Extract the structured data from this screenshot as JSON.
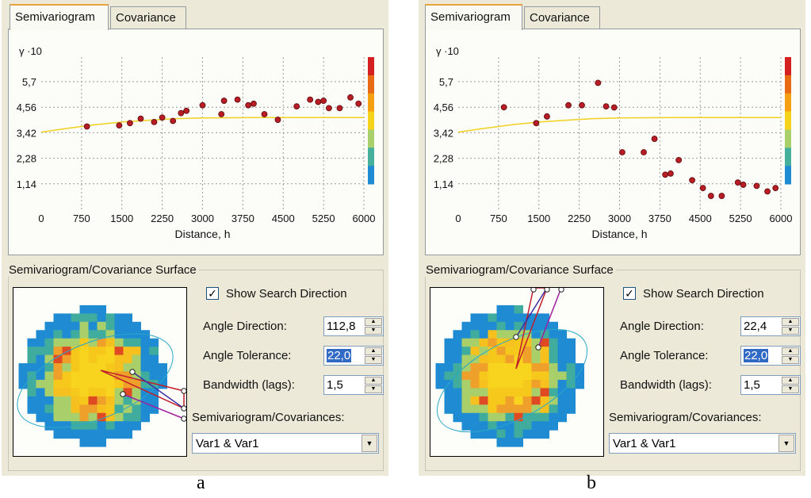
{
  "panels": [
    {
      "id": "a",
      "caption": "a",
      "tabs": [
        {
          "label": "Semivariogram",
          "active": true
        },
        {
          "label": "Covariance",
          "active": false
        }
      ],
      "chart_data": {
        "type": "scatter",
        "xlabel": "Distance, h",
        "ylabel": "γ ·10",
        "xlim": [
          0,
          6000
        ],
        "ylim": [
          0,
          6.8
        ],
        "x_ticks": [
          "0",
          "750",
          "1500",
          "2250",
          "3000",
          "3750",
          "4500",
          "5250",
          "6000"
        ],
        "y_ticks": [
          "1,14",
          "2,28",
          "3,42",
          "4,56",
          "5,7"
        ],
        "grid": true,
        "points": [
          [
            850,
            3.7
          ],
          [
            1450,
            3.75
          ],
          [
            1650,
            3.85
          ],
          [
            1850,
            4.05
          ],
          [
            2100,
            3.9
          ],
          [
            2250,
            4.1
          ],
          [
            2450,
            3.95
          ],
          [
            2600,
            4.3
          ],
          [
            2700,
            4.4
          ],
          [
            3000,
            4.65
          ],
          [
            3350,
            4.25
          ],
          [
            3400,
            4.85
          ],
          [
            3650,
            4.9
          ],
          [
            3850,
            4.65
          ],
          [
            3950,
            4.72
          ],
          [
            4150,
            4.25
          ],
          [
            4400,
            4.0
          ],
          [
            4750,
            4.6
          ],
          [
            5000,
            4.9
          ],
          [
            5150,
            4.8
          ],
          [
            5250,
            4.85
          ],
          [
            5350,
            4.52
          ],
          [
            5550,
            4.52
          ],
          [
            5750,
            5.0
          ],
          [
            5900,
            4.72
          ]
        ],
        "model_curve": [
          [
            0,
            3.45
          ],
          [
            500,
            3.62
          ],
          [
            1000,
            3.78
          ],
          [
            1500,
            3.9
          ],
          [
            2000,
            3.98
          ],
          [
            2500,
            4.05
          ],
          [
            3000,
            4.08
          ],
          [
            4000,
            4.1
          ],
          [
            6000,
            4.1
          ]
        ],
        "colorbar": [
          "#1e8bd2",
          "#46b09c",
          "#a9d06a",
          "#f5d21c",
          "#f5a012",
          "#e86a14",
          "#d42020"
        ]
      },
      "surface_group_title": "Semivariogram/Covariance Surface",
      "show_search_direction": {
        "label": "Show Search Direction",
        "checked": true
      },
      "fields": [
        {
          "label": "Angle Direction:",
          "value": "112,8",
          "selected": false
        },
        {
          "label": "Angle Tolerance:",
          "value": "22,0",
          "selected": true
        },
        {
          "label": "Bandwidth (lags):",
          "value": "1,5",
          "selected": false
        }
      ],
      "combo_label": "Semivariogram/Covariances:",
      "combo_value": "Var1 & Var1"
    },
    {
      "id": "b",
      "caption": "b",
      "tabs": [
        {
          "label": "Semivariogram",
          "active": true
        },
        {
          "label": "Covariance",
          "active": false
        }
      ],
      "chart_data": {
        "type": "scatter",
        "xlabel": "Distance, h",
        "ylabel": "γ ·10",
        "xlim": [
          0,
          6000
        ],
        "ylim": [
          0,
          6.8
        ],
        "x_ticks": [
          "0",
          "750",
          "1500",
          "2250",
          "3000",
          "3750",
          "4500",
          "5250",
          "6000"
        ],
        "y_ticks": [
          "1,14",
          "2,28",
          "3,42",
          "4,56",
          "5,7"
        ],
        "grid": true,
        "points": [
          [
            850,
            4.56
          ],
          [
            1450,
            3.85
          ],
          [
            1650,
            4.15
          ],
          [
            2050,
            4.65
          ],
          [
            2300,
            4.65
          ],
          [
            2600,
            5.65
          ],
          [
            2750,
            4.6
          ],
          [
            2900,
            4.55
          ],
          [
            3050,
            2.55
          ],
          [
            3450,
            2.55
          ],
          [
            3650,
            3.15
          ],
          [
            3850,
            1.55
          ],
          [
            3950,
            1.6
          ],
          [
            4100,
            2.2
          ],
          [
            4350,
            1.3
          ],
          [
            4550,
            0.95
          ],
          [
            4700,
            0.6
          ],
          [
            4900,
            0.6
          ],
          [
            5200,
            1.2
          ],
          [
            5300,
            1.1
          ],
          [
            5550,
            1.05
          ],
          [
            5750,
            0.8
          ],
          [
            5900,
            0.95
          ]
        ],
        "model_curve": [
          [
            0,
            3.45
          ],
          [
            500,
            3.62
          ],
          [
            1000,
            3.78
          ],
          [
            1500,
            3.9
          ],
          [
            2000,
            3.98
          ],
          [
            2500,
            4.05
          ],
          [
            3000,
            4.08
          ],
          [
            4000,
            4.1
          ],
          [
            6000,
            4.1
          ]
        ],
        "colorbar": [
          "#1e8bd2",
          "#46b09c",
          "#a9d06a",
          "#f5d21c",
          "#f5a012",
          "#e86a14",
          "#d42020"
        ]
      },
      "surface_group_title": "Semivariogram/Covariance Surface",
      "show_search_direction": {
        "label": "Show Search Direction",
        "checked": true
      },
      "fields": [
        {
          "label": "Angle Direction:",
          "value": "22,4",
          "selected": false
        },
        {
          "label": "Angle Tolerance:",
          "value": "22,0",
          "selected": true
        },
        {
          "label": "Bandwidth (lags):",
          "value": "1,5",
          "selected": false
        }
      ],
      "combo_label": "Semivariogram/Covariances:",
      "combo_value": "Var1 & Var1"
    }
  ]
}
